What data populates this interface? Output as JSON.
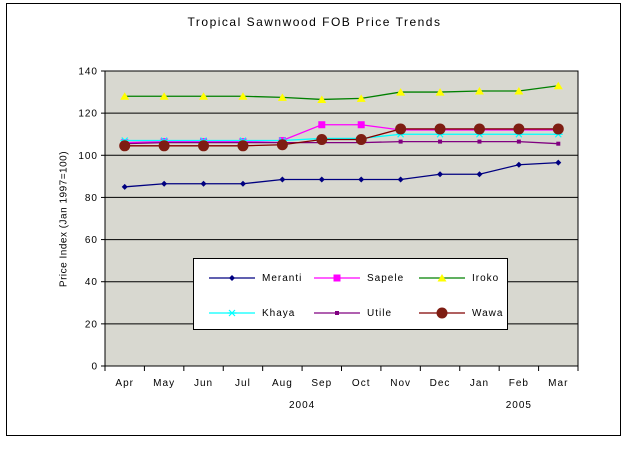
{
  "chart_data": {
    "type": "line",
    "title": "Tropical Sawnwood FOB Price Trends",
    "ylabel": "Price Index (Jan 1997=100)",
    "xlabel": "",
    "categories": [
      "Apr",
      "May",
      "Jun",
      "Jul",
      "Aug",
      "Sep",
      "Oct",
      "Nov",
      "Dec",
      "Jan",
      "Feb",
      "Mar"
    ],
    "year_labels": [
      {
        "text": "2004",
        "month_offset": 4.5
      },
      {
        "text": "2005",
        "month_offset": 10
      }
    ],
    "ylim": [
      0,
      140
    ],
    "ytick_step": 20,
    "grid": true,
    "legend_position": "inside-bottom-center",
    "plot_bg_color": "#d8d8d0",
    "axis_color": "#000000",
    "series": [
      {
        "name": "Meranti",
        "color": "#000080",
        "marker": "diamond",
        "marker_color": "#000080",
        "values": [
          85,
          86.5,
          86.5,
          86.5,
          88.5,
          88.5,
          88.5,
          88.5,
          91,
          91,
          95.5,
          96.5
        ]
      },
      {
        "name": "Sapele",
        "color": "#ff00ff",
        "marker": "square",
        "marker_color": "#ff00ff",
        "values": [
          106,
          106.5,
          106.5,
          106.5,
          107,
          114.5,
          114.5,
          112,
          112,
          112,
          112,
          112
        ]
      },
      {
        "name": "Iroko",
        "color": "#008000",
        "marker": "triangle",
        "marker_color": "#ffff00",
        "values": [
          128,
          128,
          128,
          128,
          127.5,
          126.5,
          127,
          130,
          130,
          130.5,
          130.5,
          133
        ]
      },
      {
        "name": "Khaya",
        "color": "#00ffff",
        "marker": "x",
        "marker_color": "#00ffff",
        "values": [
          107,
          107,
          107,
          107,
          107,
          108,
          108,
          110,
          110,
          110,
          110,
          110
        ]
      },
      {
        "name": "Utile",
        "color": "#800080",
        "marker": "small-square",
        "marker_color": "#800080",
        "values": [
          105.5,
          106,
          106,
          106,
          106,
          106,
          106,
          106.5,
          106.5,
          106.5,
          106.5,
          105.5
        ]
      },
      {
        "name": "Wawa",
        "color": "#800000",
        "marker": "circle",
        "marker_color": "#7e1d12",
        "values": [
          104.5,
          104.5,
          104.5,
          104.5,
          105,
          107.5,
          107.5,
          112.5,
          112.5,
          112.5,
          112.5,
          112.5
        ]
      }
    ]
  }
}
